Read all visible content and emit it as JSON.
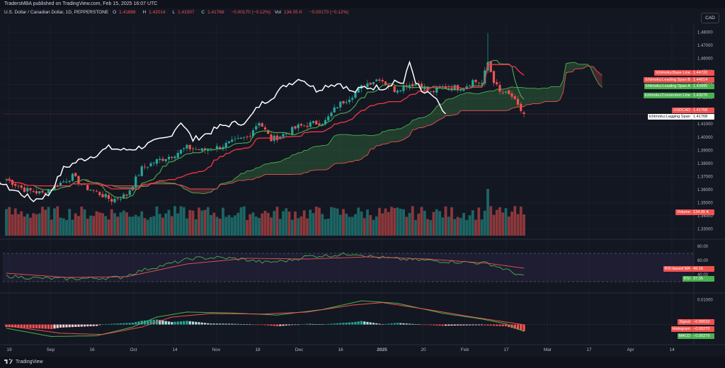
{
  "topbar": {
    "text": "TradersMBA published on TradingView.com, Feb 15, 2025 16:07 UTC"
  },
  "legend": {
    "symbol": "U.S. Dollar / Canadian Dollar, 1D, PEPPERSTONE",
    "o_label": "O",
    "o": "1.41886",
    "h_label": "H",
    "h": "1.42014",
    "l_label": "L",
    "l": "1.41507",
    "c_label": "C",
    "c": "1.41768",
    "chg": "−0.00170 (−0.12%)",
    "vol_label": "Vol",
    "vol": "134.05 K",
    "vol_chg": "−0.00170 (−0.12%)"
  },
  "currency_button": "CAD",
  "footer": {
    "brand": "TradingView"
  },
  "colors": {
    "bg": "#131722",
    "up": "#26a69a",
    "down": "#ef5350",
    "grid": "#1e222d",
    "text": "#d1d4dc"
  },
  "chart_data": {
    "type": "candlestick",
    "price_axis": {
      "ticks": [
        "1.48000",
        "1.47000",
        "1.46000",
        "1.45000",
        "1.44000",
        "1.43000",
        "1.42000",
        "1.41000",
        "1.40000",
        "1.39000",
        "1.38000",
        "1.37000",
        "1.36000",
        "1.35000",
        "1.34000",
        "1.33000"
      ],
      "range": [
        1.327,
        1.483
      ]
    },
    "rsi_axis": {
      "ticks": [
        "80.00",
        "60.00",
        "40.00"
      ],
      "range": [
        18,
        85
      ],
      "band": [
        30,
        70
      ]
    },
    "macd_axis": {
      "ticks": [
        "0.01000"
      ],
      "range": [
        -0.0075,
        0.0115
      ]
    },
    "x_labels": [
      "19",
      "Sep",
      "16",
      "Oct",
      "14",
      "Nov",
      "18",
      "Dec",
      "16",
      "2025",
      "20",
      "Feb",
      "17",
      "Mar",
      "17",
      "Apr",
      "14"
    ],
    "price_tags": [
      {
        "name": "Ichimoku:Base Line",
        "value": "1.44720",
        "color": "#ef5350"
      },
      {
        "name": "Ichimoku:Leading Span B",
        "value": "1.44014",
        "color": "#ef5350"
      },
      {
        "name": "Ichimoku:Leading Span A",
        "value": "1.43995",
        "color": "#4caf50"
      },
      {
        "name": "Ichimoku:Conversion Line",
        "value": "1.43270",
        "color": "#4caf50"
      },
      {
        "name": "USDCAD",
        "value": "1.41768",
        "color": "#ef5350"
      },
      {
        "name": "Ichimoku:Lagging Span",
        "value": "1.41768",
        "color": "#ffffff"
      },
      {
        "name": "Volume",
        "value": "134.05 K",
        "color": "#ef5350"
      }
    ],
    "rsi_tags": [
      {
        "name": "RSI-based MA",
        "value": "49.16",
        "color": "#ef5350"
      },
      {
        "name": "RSI",
        "value": "37.05",
        "color": "#4caf50"
      }
    ],
    "macd_tags": [
      {
        "name": "Signal",
        "value": "−0.00010",
        "color": "#ef5350"
      },
      {
        "name": "Histogram",
        "value": "−0.00270",
        "color": "#ef5350"
      },
      {
        "name": "MACD",
        "value": "−0.00279",
        "color": "#4caf50"
      }
    ],
    "close_anchors": [
      [
        0,
        1.368
      ],
      [
        6,
        1.36
      ],
      [
        12,
        1.357
      ],
      [
        18,
        1.365
      ],
      [
        22,
        1.37
      ],
      [
        26,
        1.362
      ],
      [
        30,
        1.358
      ],
      [
        35,
        1.352
      ],
      [
        40,
        1.356
      ],
      [
        45,
        1.376
      ],
      [
        50,
        1.382
      ],
      [
        55,
        1.386
      ],
      [
        60,
        1.392
      ],
      [
        65,
        1.39
      ],
      [
        70,
        1.392
      ],
      [
        75,
        1.396
      ],
      [
        80,
        1.4
      ],
      [
        84,
        1.412
      ],
      [
        88,
        1.398
      ],
      [
        93,
        1.403
      ],
      [
        97,
        1.408
      ],
      [
        101,
        1.41
      ],
      [
        106,
        1.412
      ],
      [
        110,
        1.424
      ],
      [
        115,
        1.432
      ],
      [
        119,
        1.44
      ],
      [
        124,
        1.445
      ],
      [
        129,
        1.436
      ],
      [
        133,
        1.44
      ],
      [
        137,
        1.441
      ],
      [
        141,
        1.434
      ],
      [
        145,
        1.438
      ],
      [
        149,
        1.438
      ],
      [
        152,
        1.438
      ],
      [
        155,
        1.443
      ],
      [
        158,
        1.441
      ],
      [
        160,
        1.457
      ],
      [
        162,
        1.443
      ],
      [
        164,
        1.434
      ],
      [
        166,
        1.433
      ],
      [
        168,
        1.431
      ],
      [
        170,
        1.423
      ],
      [
        172,
        1.4177
      ]
    ],
    "spike": {
      "index": 160,
      "high": 1.4793
    },
    "last_candle": {
      "open": 1.41886,
      "high": 1.42014,
      "low": 1.41507,
      "close": 1.41768
    },
    "rsi_anchors": [
      [
        0,
        38
      ],
      [
        10,
        35
      ],
      [
        20,
        34
      ],
      [
        30,
        35
      ],
      [
        38,
        36
      ],
      [
        45,
        46
      ],
      [
        55,
        56
      ],
      [
        62,
        63
      ],
      [
        70,
        64
      ],
      [
        78,
        62
      ],
      [
        86,
        57
      ],
      [
        94,
        60
      ],
      [
        100,
        66
      ],
      [
        108,
        67
      ],
      [
        116,
        70
      ],
      [
        122,
        65
      ],
      [
        130,
        62
      ],
      [
        140,
        60
      ],
      [
        150,
        58
      ],
      [
        160,
        56
      ],
      [
        166,
        47
      ],
      [
        172,
        37
      ]
    ],
    "rsi_ma_anchors": [
      [
        0,
        42
      ],
      [
        20,
        36
      ],
      [
        40,
        37
      ],
      [
        60,
        55
      ],
      [
        80,
        63
      ],
      [
        100,
        62
      ],
      [
        120,
        65
      ],
      [
        140,
        62
      ],
      [
        160,
        56
      ],
      [
        172,
        49
      ]
    ],
    "macd_anchors": [
      [
        0,
        -0.0015
      ],
      [
        15,
        -0.0048
      ],
      [
        30,
        -0.0045
      ],
      [
        42,
        -0.001
      ],
      [
        50,
        0.003
      ],
      [
        60,
        0.005
      ],
      [
        75,
        0.0046
      ],
      [
        90,
        0.0038
      ],
      [
        105,
        0.006
      ],
      [
        118,
        0.0095
      ],
      [
        130,
        0.0085
      ],
      [
        145,
        0.0045
      ],
      [
        158,
        0.0022
      ],
      [
        166,
        0.0003
      ],
      [
        172,
        -0.00279
      ]
    ],
    "signal_anchors": [
      [
        0,
        -0.0005
      ],
      [
        18,
        -0.0035
      ],
      [
        32,
        -0.004
      ],
      [
        45,
        -0.001
      ],
      [
        55,
        0.003
      ],
      [
        68,
        0.0044
      ],
      [
        85,
        0.0042
      ],
      [
        100,
        0.005
      ],
      [
        115,
        0.0078
      ],
      [
        125,
        0.0088
      ],
      [
        140,
        0.006
      ],
      [
        155,
        0.003
      ],
      [
        166,
        0.001
      ],
      [
        172,
        -0.0001
      ]
    ]
  }
}
